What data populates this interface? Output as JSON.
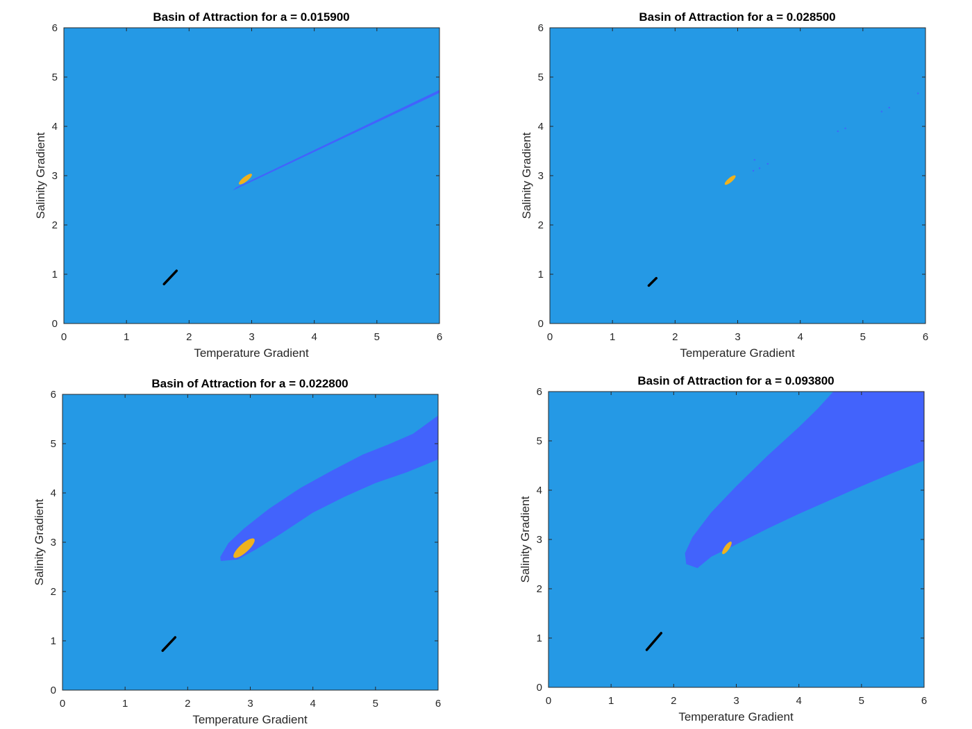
{
  "chart_data": [
    {
      "type": "heatmap",
      "title": "Basin of Attraction for a = 0.015900",
      "xlabel": "Temperature Gradient",
      "ylabel": "Salinity Gradient",
      "xlim": [
        0,
        6
      ],
      "ylim": [
        0,
        6
      ],
      "xticks": [
        "0",
        "1",
        "2",
        "3",
        "4",
        "5",
        "6"
      ],
      "yticks": [
        "0",
        "1",
        "2",
        "3",
        "4",
        "5",
        "6"
      ],
      "colors": {
        "background": "#2599E5",
        "basin": "#4263FC",
        "attractor": "#EFB21E",
        "fixed_point": "#000000"
      },
      "basin_region": [
        [
          2.7,
          2.7
        ],
        [
          6.0,
          4.68
        ],
        [
          6.0,
          4.74
        ],
        [
          2.75,
          2.76
        ]
      ],
      "attractor_ellipse": {
        "center": [
          2.9,
          2.93
        ],
        "rx": 0.13,
        "ry": 0.05,
        "angle_deg": 38
      },
      "fixed_point_segment": [
        [
          1.6,
          0.8
        ],
        [
          1.8,
          1.07
        ]
      ],
      "scatter_specks": []
    },
    {
      "type": "heatmap",
      "title": "Basin of Attraction for a = 0.028500",
      "xlabel": "Temperature Gradient",
      "ylabel": "Salinity Gradient",
      "xlim": [
        0,
        6
      ],
      "ylim": [
        0,
        6
      ],
      "xticks": [
        "0",
        "1",
        "2",
        "3",
        "4",
        "5",
        "6"
      ],
      "yticks": [
        "0",
        "1",
        "2",
        "3",
        "4",
        "5",
        "6"
      ],
      "colors": {
        "background": "#2599E5",
        "basin": "#4263FC",
        "attractor": "#EFB21E",
        "fixed_point": "#000000"
      },
      "basin_region": [],
      "attractor_ellipse": {
        "center": [
          2.88,
          2.91
        ],
        "rx": 0.11,
        "ry": 0.045,
        "angle_deg": 40
      },
      "fixed_point_segment": [
        [
          1.58,
          0.77
        ],
        [
          1.7,
          0.92
        ]
      ],
      "scatter_specks": [
        [
          3.27,
          3.32
        ],
        [
          3.25,
          3.1
        ],
        [
          3.35,
          3.15
        ],
        [
          3.48,
          3.24
        ],
        [
          4.6,
          3.9
        ],
        [
          4.72,
          3.96
        ],
        [
          5.3,
          4.3
        ],
        [
          5.42,
          4.38
        ],
        [
          5.88,
          4.67
        ]
      ]
    },
    {
      "type": "heatmap",
      "title": "Basin of Attraction for a = 0.022800",
      "xlabel": "Temperature Gradient",
      "ylabel": "Salinity Gradient",
      "xlim": [
        0,
        6
      ],
      "ylim": [
        0,
        6
      ],
      "xticks": [
        "0",
        "1",
        "2",
        "3",
        "4",
        "5",
        "6"
      ],
      "yticks": [
        "0",
        "1",
        "2",
        "3",
        "4",
        "5",
        "6"
      ],
      "colors": {
        "background": "#2599E5",
        "basin": "#4263FC",
        "attractor": "#EFB21E",
        "fixed_point": "#000000"
      },
      "basin_region": [
        [
          2.52,
          2.7
        ],
        [
          2.65,
          2.98
        ],
        [
          2.9,
          3.28
        ],
        [
          3.3,
          3.68
        ],
        [
          3.8,
          4.1
        ],
        [
          4.3,
          4.45
        ],
        [
          4.8,
          4.78
        ],
        [
          5.2,
          4.98
        ],
        [
          5.6,
          5.2
        ],
        [
          6.0,
          5.57
        ],
        [
          6.0,
          4.68
        ],
        [
          5.5,
          4.42
        ],
        [
          5.0,
          4.2
        ],
        [
          4.5,
          3.92
        ],
        [
          4.0,
          3.6
        ],
        [
          3.5,
          3.18
        ],
        [
          3.1,
          2.86
        ],
        [
          2.8,
          2.65
        ],
        [
          2.53,
          2.62
        ]
      ],
      "attractor_ellipse": {
        "center": [
          2.9,
          2.88
        ],
        "rx": 0.22,
        "ry": 0.09,
        "angle_deg": 42
      },
      "fixed_point_segment": [
        [
          1.6,
          0.8
        ],
        [
          1.8,
          1.07
        ]
      ],
      "scatter_specks": []
    },
    {
      "type": "heatmap",
      "title": "Basin of Attraction for a = 0.093800",
      "xlabel": "Temperature Gradient",
      "ylabel": "Salinity Gradient",
      "xlim": [
        0,
        6
      ],
      "ylim": [
        0,
        6
      ],
      "xticks": [
        "0",
        "1",
        "2",
        "3",
        "4",
        "5",
        "6"
      ],
      "yticks": [
        "0",
        "1",
        "2",
        "3",
        "4",
        "5",
        "6"
      ],
      "colors": {
        "background": "#2599E5",
        "basin": "#4263FC",
        "attractor": "#EFB21E",
        "fixed_point": "#000000"
      },
      "basin_region": [
        [
          2.2,
          2.5
        ],
        [
          2.18,
          2.72
        ],
        [
          2.3,
          3.05
        ],
        [
          2.6,
          3.55
        ],
        [
          3.0,
          4.08
        ],
        [
          3.5,
          4.7
        ],
        [
          4.0,
          5.28
        ],
        [
          4.3,
          5.65
        ],
        [
          4.55,
          6.0
        ],
        [
          6.0,
          6.0
        ],
        [
          6.0,
          4.6
        ],
        [
          5.5,
          4.35
        ],
        [
          5.0,
          4.08
        ],
        [
          4.5,
          3.8
        ],
        [
          4.0,
          3.52
        ],
        [
          3.5,
          3.22
        ],
        [
          3.0,
          2.9
        ],
        [
          2.6,
          2.65
        ],
        [
          2.38,
          2.42
        ]
      ],
      "attractor_ellipse": {
        "center": [
          2.85,
          2.83
        ],
        "rx": 0.12,
        "ry": 0.05,
        "angle_deg": 55
      },
      "fixed_point_segment": [
        [
          1.57,
          0.76
        ],
        [
          1.8,
          1.1
        ]
      ],
      "scatter_specks": []
    }
  ]
}
